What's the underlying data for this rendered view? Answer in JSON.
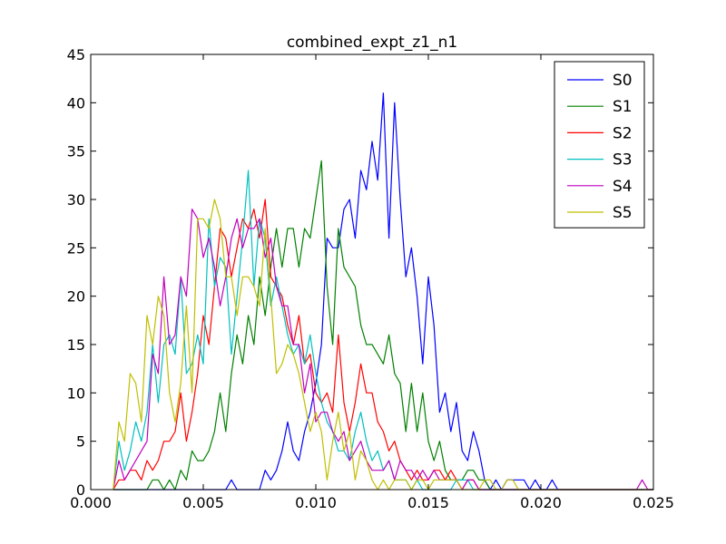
{
  "chart_data": {
    "type": "line",
    "title": "combined_expt_z1_n1",
    "xlabel": "",
    "ylabel": "",
    "xlim": [
      0.0,
      0.025
    ],
    "ylim": [
      0,
      45
    ],
    "x_ticks": [
      "0.000",
      "0.005",
      "0.010",
      "0.015",
      "0.020",
      "0.025"
    ],
    "x_tick_values": [
      0.0,
      0.005,
      0.01,
      0.015,
      0.02,
      0.025
    ],
    "y_ticks": [
      "0",
      "5",
      "10",
      "15",
      "20",
      "25",
      "30",
      "35",
      "40",
      "45"
    ],
    "y_tick_values": [
      0,
      5,
      10,
      15,
      20,
      25,
      30,
      35,
      40,
      45
    ],
    "grid": false,
    "legend_position": "top-right",
    "x": [
      0.001,
      0.00125,
      0.0015,
      0.00175,
      0.002,
      0.00225,
      0.0025,
      0.00275,
      0.003,
      0.00325,
      0.0035,
      0.00375,
      0.004,
      0.00425,
      0.0045,
      0.00475,
      0.005,
      0.00525,
      0.0055,
      0.00575,
      0.006,
      0.00625,
      0.0065,
      0.00675,
      0.007,
      0.00725,
      0.0075,
      0.00775,
      0.008,
      0.00825,
      0.0085,
      0.00875,
      0.009,
      0.00925,
      0.0095,
      0.00975,
      0.01,
      0.01025,
      0.0105,
      0.01075,
      0.011,
      0.01125,
      0.0115,
      0.01175,
      0.012,
      0.01225,
      0.0125,
      0.01275,
      0.013,
      0.01325,
      0.0135,
      0.01375,
      0.014,
      0.01425,
      0.0145,
      0.01475,
      0.015,
      0.01525,
      0.0155,
      0.01575,
      0.016,
      0.01625,
      0.0165,
      0.01675,
      0.017,
      0.01725,
      0.0175,
      0.01775,
      0.018,
      0.01825,
      0.0185,
      0.01875,
      0.019,
      0.01925,
      0.0195,
      0.01975,
      0.02,
      0.02025,
      0.0205,
      0.02075,
      0.021,
      0.02125,
      0.0215,
      0.02175,
      0.022,
      0.02225,
      0.0225,
      0.02275,
      0.023,
      0.02325,
      0.0235,
      0.02375,
      0.024,
      0.02425,
      0.0245,
      0.02475,
      0.025
    ],
    "series": [
      {
        "name": "S0",
        "color": "#0000ff",
        "values": [
          0,
          0,
          0,
          0,
          0,
          0,
          0,
          0,
          0,
          0,
          0,
          0,
          0,
          0,
          0,
          0,
          0,
          0,
          0,
          0,
          0,
          1,
          0,
          0,
          0,
          0,
          0,
          2,
          1,
          2,
          4,
          7,
          4,
          3,
          6,
          8,
          11,
          15,
          26,
          25,
          25,
          29,
          30,
          26,
          33,
          31,
          36,
          32,
          41,
          26,
          40,
          30,
          22,
          25,
          20,
          13,
          22,
          17,
          8,
          10,
          6,
          9,
          4,
          3,
          6,
          4,
          1,
          0,
          1,
          0,
          1,
          1,
          1,
          1,
          0,
          1,
          0,
          0,
          1,
          0,
          0,
          0,
          0,
          0,
          0,
          0,
          0,
          0,
          0,
          0,
          0,
          0,
          0,
          0,
          0,
          0,
          0
        ]
      },
      {
        "name": "S1",
        "color": "#008000",
        "values": [
          0,
          0,
          0,
          0,
          0,
          0,
          0,
          1,
          1,
          0,
          1,
          0,
          2,
          1,
          4,
          3,
          3,
          4,
          6,
          10,
          6,
          12,
          16,
          13,
          18,
          15,
          22,
          18,
          23,
          27,
          23,
          27,
          27,
          23,
          27,
          26,
          30,
          34,
          21,
          15,
          27,
          23,
          22,
          21,
          17,
          15,
          15,
          14,
          13,
          16,
          12,
          11,
          6,
          11,
          6,
          10,
          5,
          3,
          5,
          2,
          1,
          1,
          1,
          2,
          2,
          1,
          1,
          0,
          0,
          0,
          0,
          0,
          0,
          0,
          0,
          0,
          0,
          0,
          0,
          0,
          0,
          0,
          0,
          0,
          0,
          0,
          0,
          0,
          0,
          0,
          0,
          0,
          0,
          0,
          0,
          0,
          0
        ]
      },
      {
        "name": "S2",
        "color": "#ff0000",
        "values": [
          0,
          1,
          1,
          2,
          2,
          1,
          3,
          2,
          3,
          5,
          5,
          6,
          10,
          5,
          8,
          12,
          18,
          15,
          21,
          27,
          26,
          22,
          25,
          28,
          27,
          29,
          26,
          30,
          22,
          21,
          20,
          17,
          15,
          18,
          13,
          14,
          10,
          9,
          10,
          8,
          16,
          9,
          6,
          9,
          13,
          10,
          10,
          7,
          6,
          4,
          5,
          3,
          2,
          1,
          2,
          1,
          1,
          2,
          2,
          1,
          2,
          1,
          0,
          1,
          1,
          0,
          0,
          0,
          0,
          0,
          0,
          0,
          0,
          0,
          0,
          0,
          0,
          0,
          0,
          0,
          0,
          0,
          0,
          0,
          0,
          0,
          0,
          0,
          0,
          0,
          0,
          0,
          0,
          0,
          0,
          0,
          0
        ]
      },
      {
        "name": "S3",
        "color": "#00bfbf",
        "values": [
          0,
          5,
          2,
          4,
          7,
          5,
          8,
          15,
          9,
          15,
          16,
          14,
          22,
          12,
          13,
          16,
          13,
          28,
          21,
          24,
          23,
          14,
          20,
          26,
          33,
          21,
          28,
          26,
          19,
          22,
          19,
          16,
          14,
          15,
          13,
          16,
          12,
          9,
          7,
          6,
          4,
          4,
          3,
          6,
          8,
          5,
          3,
          4,
          2,
          3,
          1,
          1,
          1,
          0,
          1,
          0,
          0,
          0,
          0,
          0,
          0,
          1,
          1,
          1,
          0,
          0,
          0,
          0,
          0,
          0,
          0,
          0,
          0,
          0,
          0,
          0,
          0,
          0,
          0,
          0,
          0,
          0,
          0,
          0,
          0,
          0,
          0,
          0,
          0,
          0,
          0,
          0,
          0,
          0,
          0,
          0,
          0
        ]
      },
      {
        "name": "S4",
        "color": "#bf00bf",
        "values": [
          0,
          3,
          1,
          2,
          3,
          4,
          5,
          14,
          12,
          22,
          15,
          16,
          22,
          20,
          29,
          28,
          24,
          26,
          23,
          19,
          22,
          26,
          28,
          25,
          27,
          27,
          28,
          24,
          26,
          21,
          19,
          19,
          15,
          15,
          10,
          13,
          7,
          8,
          8,
          6,
          5,
          6,
          3,
          4,
          5,
          3,
          2,
          2,
          2,
          3,
          1,
          3,
          2,
          2,
          1,
          2,
          1,
          2,
          1,
          1,
          1,
          1,
          0,
          1,
          1,
          0,
          0,
          0,
          0,
          0,
          0,
          0,
          0,
          0,
          0,
          0,
          0,
          0,
          0,
          0,
          0,
          0,
          0,
          0,
          0,
          0,
          0,
          0,
          0,
          0,
          0,
          0,
          0,
          0,
          1,
          0,
          0
        ]
      },
      {
        "name": "S5",
        "color": "#bfbf00",
        "values": [
          0,
          7,
          5,
          12,
          11,
          7,
          18,
          15,
          20,
          18,
          10,
          7,
          11,
          19,
          10,
          28,
          28,
          27,
          30,
          28,
          22,
          22,
          18,
          22,
          22,
          21,
          19,
          27,
          20,
          12,
          13,
          15,
          14,
          12,
          9,
          6,
          8,
          6,
          1,
          5,
          8,
          4,
          6,
          1,
          4,
          3,
          1,
          0,
          1,
          0,
          1,
          1,
          1,
          0,
          1,
          1,
          0,
          1,
          1,
          1,
          1,
          1,
          0,
          0,
          0,
          0,
          1,
          1,
          0,
          0,
          1,
          1,
          0,
          0,
          0,
          0,
          0,
          0,
          0,
          0,
          0,
          0,
          0,
          0,
          0,
          0,
          0,
          0,
          0,
          0,
          0,
          0,
          0,
          0,
          0,
          0,
          0
        ]
      }
    ]
  }
}
